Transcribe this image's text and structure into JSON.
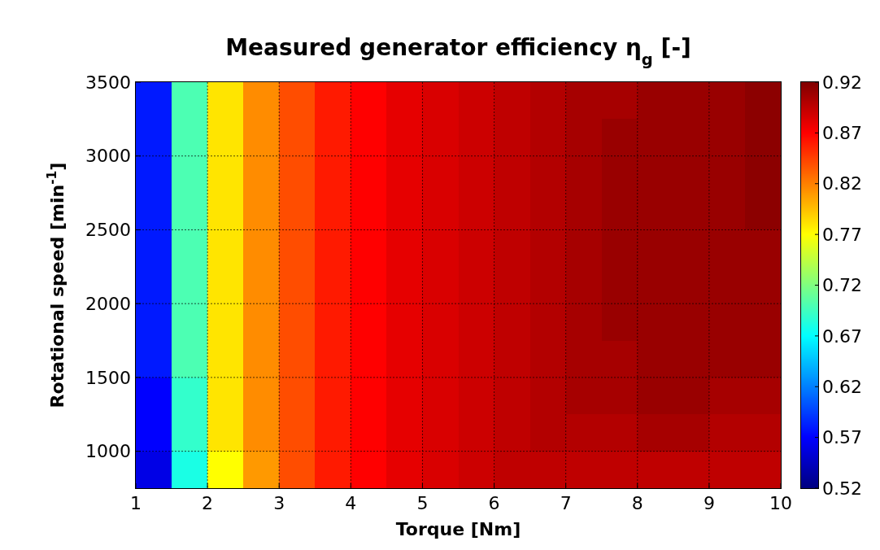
{
  "chart_data": {
    "type": "heatmap",
    "title": "Measured generator efficiency  η$_{g}$ [-]",
    "xlabel": "Torque [Nm]",
    "ylabel": "Rotational speed [min$^{-1}$]",
    "x": [
      1.25,
      1.75,
      2.25,
      2.75,
      3.25,
      3.75,
      4.25,
      4.75,
      5.25,
      5.75,
      6.25,
      6.75,
      7.25,
      7.75,
      8.25,
      8.75,
      9.25,
      9.75
    ],
    "xlim": [
      1,
      10
    ],
    "xticks": [
      1,
      2,
      3,
      4,
      5,
      6,
      7,
      8,
      9,
      10
    ],
    "ylim": [
      750,
      3500
    ],
    "yticks": [
      1000,
      1500,
      2000,
      2500,
      3000,
      3500
    ],
    "cells": [
      [
        0.58,
        0.7,
        0.78,
        0.815,
        0.84,
        0.86,
        0.87,
        0.88,
        0.885,
        0.89,
        0.895,
        0.9,
        0.905,
        0.905,
        0.91,
        0.91,
        0.91,
        0.915
      ],
      [
        0.58,
        0.7,
        0.78,
        0.815,
        0.84,
        0.86,
        0.87,
        0.88,
        0.885,
        0.89,
        0.895,
        0.9,
        0.905,
        0.91,
        0.91,
        0.91,
        0.91,
        0.915
      ],
      [
        0.58,
        0.7,
        0.78,
        0.815,
        0.84,
        0.86,
        0.87,
        0.88,
        0.885,
        0.89,
        0.895,
        0.9,
        0.905,
        0.91,
        0.91,
        0.91,
        0.91,
        0.915
      ],
      [
        0.58,
        0.7,
        0.78,
        0.815,
        0.84,
        0.86,
        0.87,
        0.88,
        0.885,
        0.89,
        0.895,
        0.9,
        0.905,
        0.91,
        0.91,
        0.91,
        0.91,
        0.915
      ],
      [
        0.58,
        0.7,
        0.78,
        0.815,
        0.84,
        0.86,
        0.87,
        0.88,
        0.885,
        0.89,
        0.895,
        0.9,
        0.905,
        0.91,
        0.91,
        0.91,
        0.91,
        0.91
      ],
      [
        0.58,
        0.7,
        0.78,
        0.815,
        0.84,
        0.86,
        0.87,
        0.88,
        0.885,
        0.89,
        0.895,
        0.9,
        0.905,
        0.91,
        0.91,
        0.91,
        0.91,
        0.91
      ],
      [
        0.58,
        0.7,
        0.78,
        0.815,
        0.84,
        0.86,
        0.87,
        0.88,
        0.885,
        0.89,
        0.895,
        0.9,
        0.905,
        0.91,
        0.91,
        0.91,
        0.91,
        0.91
      ],
      [
        0.58,
        0.7,
        0.78,
        0.815,
        0.84,
        0.86,
        0.87,
        0.88,
        0.885,
        0.89,
        0.895,
        0.9,
        0.905,
        0.905,
        0.91,
        0.91,
        0.91,
        0.91
      ],
      [
        0.57,
        0.69,
        0.78,
        0.815,
        0.84,
        0.86,
        0.87,
        0.88,
        0.885,
        0.89,
        0.895,
        0.9,
        0.905,
        0.905,
        0.91,
        0.91,
        0.905,
        0.905
      ],
      [
        0.57,
        0.69,
        0.78,
        0.815,
        0.84,
        0.86,
        0.87,
        0.88,
        0.885,
        0.89,
        0.895,
        0.9,
        0.9,
        0.9,
        0.905,
        0.905,
        0.9,
        0.9
      ],
      [
        0.56,
        0.68,
        0.77,
        0.81,
        0.84,
        0.86,
        0.87,
        0.88,
        0.885,
        0.89,
        0.895,
        0.895,
        0.895,
        0.895,
        0.895,
        0.895,
        0.895,
        0.895
      ]
    ],
    "clim": [
      0.52,
      0.92
    ],
    "cticks": [
      0.52,
      0.57,
      0.62,
      0.67,
      0.72,
      0.77,
      0.82,
      0.87,
      0.92
    ],
    "grid": true
  }
}
